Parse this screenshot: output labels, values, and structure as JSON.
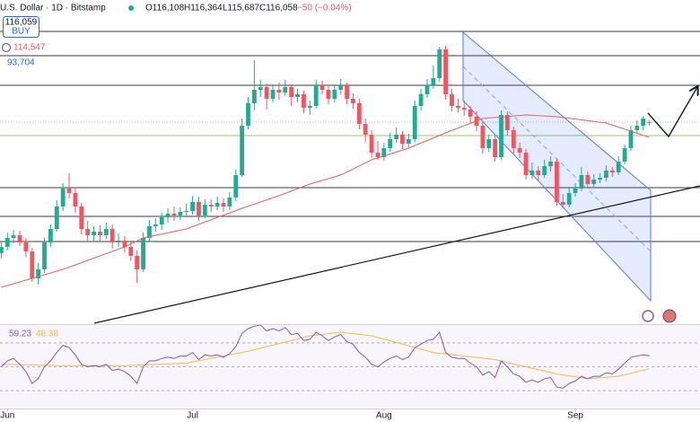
{
  "header": {
    "symbol": "U.S. Dollar · 1D · Bitstamp",
    "open": "O116,108",
    "high": "H116,364",
    "low": "L115,687",
    "close": "C116,058",
    "change": "−50 (−0.04%)"
  },
  "order_box": {
    "price": "116,059",
    "side": "BUY"
  },
  "indicator_labels": [
    "114,547",
    "93,704"
  ],
  "chart_data": {
    "type": "candlestick",
    "xlim": [
      -0.2,
      113.2
    ],
    "xticks": [
      {
        "value": 1,
        "label": "Jun"
      },
      {
        "value": 31,
        "label": "Jul"
      },
      {
        "value": 62,
        "label": "Aug"
      },
      {
        "value": 93,
        "label": "Sep"
      }
    ],
    "ylim": [
      93700,
      129700
    ],
    "up_color": "#22ab94",
    "down_color": "#f7525f",
    "candles": [
      [
        101500,
        102800,
        100900,
        102200
      ],
      [
        102200,
        103800,
        101800,
        103200
      ],
      [
        103200,
        104100,
        102600,
        103500
      ],
      [
        103500,
        104000,
        102300,
        102700
      ],
      [
        102700,
        103200,
        101100,
        101700
      ],
      [
        101700,
        102100,
        98300,
        98700
      ],
      [
        98700,
        100400,
        98000,
        99700
      ],
      [
        99700,
        103200,
        99300,
        102700
      ],
      [
        102700,
        104700,
        102200,
        104200
      ],
      [
        104200,
        107400,
        103900,
        106700
      ],
      [
        106700,
        109300,
        106200,
        108700
      ],
      [
        108700,
        110400,
        107600,
        108200
      ],
      [
        108200,
        108800,
        106000,
        106700
      ],
      [
        106700,
        107100,
        103600,
        104200
      ],
      [
        104200,
        105100,
        102800,
        103500
      ],
      [
        103500,
        104500,
        102900,
        103900
      ],
      [
        103900,
        104600,
        102700,
        103500
      ],
      [
        103500,
        104900,
        103100,
        104200
      ],
      [
        104200,
        104700,
        102000,
        102700
      ],
      [
        102700,
        103700,
        102200,
        102900
      ],
      [
        102900,
        103400,
        101600,
        102200
      ],
      [
        102200,
        102700,
        100600,
        101200
      ],
      [
        101200,
        101800,
        98200,
        99700
      ],
      [
        99700,
        103800,
        99400,
        103200
      ],
      [
        103200,
        105200,
        102800,
        104500
      ],
      [
        104500,
        105400,
        103900,
        104700
      ],
      [
        104700,
        106000,
        104100,
        105500
      ],
      [
        105500,
        106500,
        104900,
        105900
      ],
      [
        105900,
        106700,
        105100,
        105700
      ],
      [
        105700,
        106600,
        105200,
        106100
      ],
      [
        106100,
        107000,
        105500,
        106200
      ],
      [
        106200,
        107900,
        105800,
        107200
      ],
      [
        107200,
        107800,
        105100,
        105700
      ],
      [
        105700,
        107500,
        105400,
        106900
      ],
      [
        106900,
        107500,
        106100,
        106700
      ],
      [
        106700,
        107800,
        106300,
        107100
      ],
      [
        107100,
        107600,
        106100,
        106700
      ],
      [
        106700,
        108300,
        106300,
        107700
      ],
      [
        107700,
        110800,
        107300,
        110200
      ],
      [
        110200,
        116500,
        110000,
        115700
      ],
      [
        115700,
        118900,
        115300,
        118200
      ],
      [
        118200,
        123000,
        117400,
        119700
      ],
      [
        119700,
        120800,
        118900,
        120000
      ],
      [
        120000,
        120400,
        117500,
        118700
      ],
      [
        118700,
        120300,
        118300,
        119700
      ],
      [
        119700,
        120500,
        118600,
        119400
      ],
      [
        119400,
        120800,
        119000,
        120000
      ],
      [
        120000,
        120300,
        117900,
        118900
      ],
      [
        118900,
        119800,
        118300,
        119200
      ],
      [
        119200,
        119600,
        117100,
        117700
      ],
      [
        117700,
        118500,
        116900,
        117900
      ],
      [
        117900,
        120800,
        117600,
        120200
      ],
      [
        120200,
        120700,
        119200,
        119700
      ],
      [
        119700,
        120100,
        118100,
        118700
      ],
      [
        118700,
        120300,
        118300,
        119700
      ],
      [
        119700,
        120900,
        119200,
        120200
      ],
      [
        120200,
        120500,
        118100,
        118700
      ],
      [
        118700,
        119300,
        117600,
        118200
      ],
      [
        118200,
        118700,
        115300,
        115900
      ],
      [
        115900,
        116500,
        113900,
        114700
      ],
      [
        114700,
        115200,
        112100,
        112700
      ],
      [
        112700,
        114000,
        111900,
        112200
      ],
      [
        112200,
        113800,
        111800,
        113200
      ],
      [
        113200,
        114900,
        112800,
        114200
      ],
      [
        114200,
        115500,
        113800,
        114700
      ],
      [
        114700,
        115100,
        113100,
        113700
      ],
      [
        113700,
        114800,
        113300,
        114200
      ],
      [
        114200,
        118500,
        113900,
        117900
      ],
      [
        117900,
        119800,
        117400,
        119200
      ],
      [
        119200,
        120900,
        118800,
        120200
      ],
      [
        120200,
        122400,
        119800,
        121000
      ],
      [
        121000,
        124500,
        120600,
        124200
      ],
      [
        124200,
        124600,
        118600,
        119200
      ],
      [
        119200,
        119800,
        117300,
        117900
      ],
      [
        117900,
        118700,
        117200,
        117700
      ],
      [
        117700,
        118500,
        116800,
        117500
      ],
      [
        117500,
        117900,
        116000,
        116700
      ],
      [
        116700,
        117300,
        115100,
        115700
      ],
      [
        115700,
        116200,
        112600,
        113200
      ],
      [
        113200,
        114700,
        112800,
        114200
      ],
      [
        114200,
        114600,
        111700,
        112200
      ],
      [
        112200,
        117400,
        111900,
        116900
      ],
      [
        116900,
        117300,
        114600,
        115200
      ],
      [
        115200,
        115600,
        112600,
        113200
      ],
      [
        113200,
        113800,
        112100,
        112700
      ],
      [
        112700,
        113100,
        109700,
        110200
      ],
      [
        110200,
        111600,
        109800,
        110700
      ],
      [
        110700,
        111200,
        109500,
        110200
      ],
      [
        110200,
        111900,
        109900,
        111200
      ],
      [
        111200,
        112300,
        110600,
        111700
      ],
      [
        111700,
        112000,
        106800,
        107200
      ],
      [
        107200,
        108100,
        106500,
        106900
      ],
      [
        106900,
        108800,
        106600,
        108200
      ],
      [
        108200,
        109300,
        107800,
        108700
      ],
      [
        108700,
        111100,
        108400,
        110200
      ],
      [
        110200,
        110600,
        108800,
        109200
      ],
      [
        109200,
        110300,
        108900,
        109700
      ],
      [
        109700,
        110400,
        109300,
        109900
      ],
      [
        109900,
        111300,
        109500,
        110700
      ],
      [
        110700,
        111100,
        110000,
        110500
      ],
      [
        110500,
        112300,
        110200,
        111700
      ],
      [
        111700,
        113600,
        111400,
        113200
      ],
      [
        113200,
        115700,
        112900,
        115200
      ],
      [
        115200,
        116300,
        114800,
        115700
      ],
      [
        115700,
        116800,
        115200,
        116500
      ],
      [
        116108,
        116364,
        115687,
        116058
      ]
    ],
    "ma": {
      "color": "#e8625b",
      "x": [
        0,
        10,
        20,
        23,
        30,
        39,
        45,
        50,
        55,
        60,
        66,
        72,
        78,
        85,
        90,
        98,
        105
      ],
      "values": [
        97700,
        99700,
        102200,
        103200,
        104200,
        106500,
        107900,
        109200,
        110200,
        111900,
        113200,
        114900,
        116500,
        116900,
        116700,
        116000,
        114400
      ]
    },
    "rsi": {
      "ylim": [
        15,
        85
      ],
      "levels": [
        30,
        50,
        70
      ],
      "color": "#7e57c2",
      "values": [
        50,
        55,
        57,
        52,
        46,
        36,
        40,
        50,
        55,
        62,
        68,
        66,
        60,
        52,
        50,
        51,
        50,
        52,
        47,
        48,
        46,
        42,
        36,
        50,
        55,
        55,
        57,
        58,
        57,
        59,
        59,
        62,
        56,
        60,
        59,
        60,
        58,
        61,
        67,
        78,
        82,
        84,
        85,
        80,
        82,
        80,
        83,
        77,
        78,
        72,
        73,
        79,
        76,
        72,
        75,
        77,
        71,
        69,
        62,
        58,
        52,
        50,
        54,
        57,
        59,
        56,
        58,
        66,
        69,
        72,
        73,
        79,
        62,
        58,
        57,
        57,
        53,
        50,
        43,
        46,
        41,
        55,
        50,
        44,
        42,
        37,
        39,
        37,
        40,
        41,
        33,
        32,
        36,
        38,
        42,
        40,
        42,
        42,
        45,
        44,
        48,
        53,
        58,
        59,
        60,
        59.23
      ],
      "ma_color": "#f2b94a",
      "ma_x": [
        0,
        10,
        20,
        30,
        40,
        50,
        55,
        60,
        70,
        80,
        90,
        95,
        100,
        105
      ],
      "ma_values": [
        52,
        51,
        51,
        53,
        63,
        76,
        79,
        76,
        62,
        56,
        44,
        40,
        42,
        48.38
      ]
    }
  }
}
